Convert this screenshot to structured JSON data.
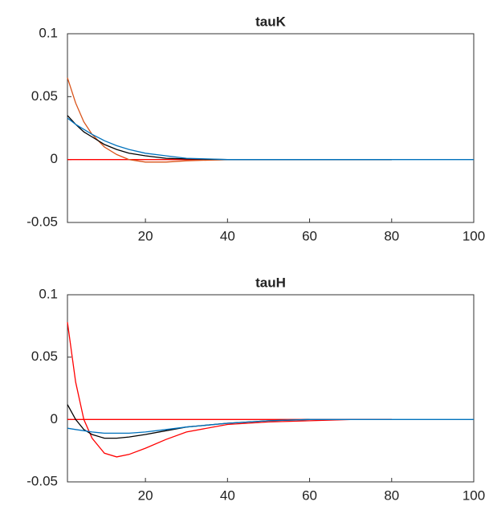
{
  "chart_data": [
    {
      "type": "line",
      "title": "tauK",
      "x": [
        1,
        3,
        5,
        7,
        10,
        13,
        16,
        20,
        25,
        30,
        40,
        50,
        60,
        70,
        80,
        90,
        100
      ],
      "xlim": [
        1,
        100
      ],
      "xticks": [
        20,
        40,
        60,
        80,
        100
      ],
      "ylim": [
        -0.05,
        0.1
      ],
      "yticks": [
        -0.05,
        0,
        0.05,
        0.1
      ],
      "series": [
        {
          "color": "#ff0000",
          "values": [
            0,
            0,
            0,
            0,
            0,
            0,
            0,
            0,
            0,
            0,
            0,
            0,
            0,
            0,
            0,
            null,
            null
          ]
        },
        {
          "color": "#d95319",
          "values": [
            0.065,
            0.045,
            0.03,
            0.02,
            0.01,
            0.004,
            0.0,
            -0.002,
            -0.002,
            -0.001,
            0,
            0,
            0,
            0,
            0,
            null,
            null
          ]
        },
        {
          "color": "#000000",
          "values": [
            0.035,
            0.028,
            0.022,
            0.018,
            0.012,
            0.008,
            0.005,
            0.003,
            0.001,
            0.0005,
            0,
            0,
            0,
            0,
            0,
            null,
            null
          ]
        },
        {
          "color": "#0072bd",
          "values": [
            0.033,
            0.028,
            0.024,
            0.02,
            0.015,
            0.011,
            0.008,
            0.005,
            0.003,
            0.001,
            0,
            0,
            0,
            0,
            0,
            0,
            0
          ]
        }
      ]
    },
    {
      "type": "line",
      "title": "tauH",
      "x": [
        1,
        3,
        5,
        7,
        10,
        13,
        16,
        20,
        25,
        30,
        40,
        50,
        60,
        70,
        80,
        90,
        100
      ],
      "xlim": [
        1,
        100
      ],
      "xticks": [
        20,
        40,
        60,
        80,
        100
      ],
      "ylim": [
        -0.05,
        0.1
      ],
      "yticks": [
        -0.05,
        0,
        0.05,
        0.1
      ],
      "series": [
        {
          "color": "#ff0000",
          "values": [
            0,
            0,
            0,
            0,
            0,
            0,
            0,
            0,
            0,
            0,
            0,
            0,
            0,
            0,
            0,
            null,
            null
          ]
        },
        {
          "color": "#ff0000",
          "values": [
            0.078,
            0.03,
            0.0,
            -0.015,
            -0.027,
            -0.03,
            -0.028,
            -0.023,
            -0.016,
            -0.01,
            -0.004,
            -0.002,
            -0.001,
            0,
            0,
            null,
            null
          ]
        },
        {
          "color": "#000000",
          "values": [
            0.012,
            0.0,
            -0.008,
            -0.012,
            -0.015,
            -0.015,
            -0.014,
            -0.012,
            -0.009,
            -0.006,
            -0.003,
            -0.001,
            0,
            null,
            null,
            null,
            null
          ]
        },
        {
          "color": "#0072bd",
          "values": [
            -0.007,
            -0.008,
            -0.009,
            -0.01,
            -0.011,
            -0.011,
            -0.011,
            -0.01,
            -0.008,
            -0.006,
            -0.003,
            -0.001,
            0,
            0,
            0,
            0,
            0
          ]
        }
      ]
    }
  ]
}
